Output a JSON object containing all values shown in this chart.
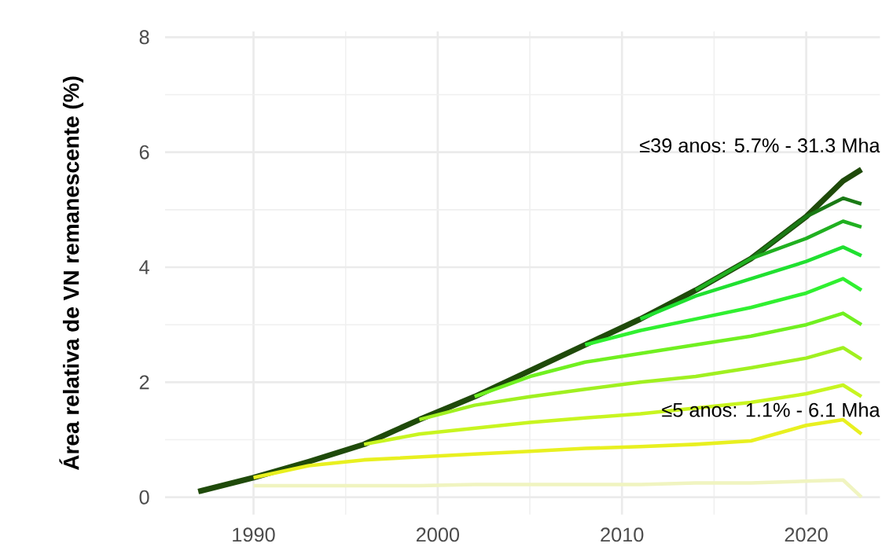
{
  "chart_data": {
    "type": "line",
    "ylabel": "Área relativa de VN remanescente (%)",
    "x": [
      1987,
      1990,
      1993,
      1996,
      1999,
      2002,
      2005,
      2008,
      2011,
      2014,
      2017,
      2020,
      2022,
      2023
    ],
    "xlim": [
      1985.2,
      2024
    ],
    "ylim": [
      -0.3,
      8.1
    ],
    "xticks": [
      1990,
      2000,
      2010,
      2020
    ],
    "yticks": [
      0,
      2,
      4,
      6,
      8
    ],
    "grid": true,
    "line_style": "solid",
    "series": [
      {
        "color": "#f0f4c0",
        "values": [
          null,
          0.2,
          0.2,
          0.2,
          0.2,
          0.22,
          0.22,
          0.22,
          0.22,
          0.25,
          0.25,
          0.28,
          0.3,
          0.0
        ]
      },
      {
        "color": "#e8f020",
        "values": [
          null,
          0.34,
          0.55,
          0.65,
          0.7,
          0.75,
          0.8,
          0.85,
          0.88,
          0.92,
          0.98,
          1.25,
          1.35,
          1.1
        ]
      },
      {
        "color": "#c8f520",
        "values": [
          null,
          null,
          null,
          0.92,
          1.1,
          1.2,
          1.3,
          1.38,
          1.45,
          1.55,
          1.65,
          1.8,
          1.95,
          1.75
        ]
      },
      {
        "color": "#a0f020",
        "values": [
          null,
          null,
          null,
          null,
          1.35,
          1.6,
          1.75,
          1.88,
          2.0,
          2.1,
          2.25,
          2.42,
          2.6,
          2.4
        ]
      },
      {
        "color": "#70f020",
        "values": [
          null,
          null,
          null,
          null,
          null,
          1.75,
          2.1,
          2.35,
          2.5,
          2.65,
          2.8,
          3.0,
          3.2,
          3.0
        ]
      },
      {
        "color": "#30f030",
        "values": [
          null,
          null,
          null,
          null,
          null,
          null,
          null,
          2.65,
          2.9,
          3.1,
          3.3,
          3.55,
          3.8,
          3.6
        ]
      },
      {
        "color": "#20e030",
        "values": [
          null,
          null,
          null,
          null,
          null,
          null,
          null,
          null,
          3.1,
          3.5,
          3.8,
          4.1,
          4.35,
          4.2
        ]
      },
      {
        "color": "#20b020",
        "values": [
          null,
          null,
          null,
          null,
          null,
          null,
          null,
          null,
          null,
          3.6,
          4.15,
          4.5,
          4.8,
          4.7
        ]
      },
      {
        "color": "#1a7a15",
        "values": [
          null,
          null,
          null,
          null,
          null,
          null,
          null,
          null,
          null,
          null,
          4.15,
          4.88,
          5.2,
          5.1
        ]
      },
      {
        "color": "#1f4a0a",
        "values": [
          0.1,
          0.34,
          0.62,
          0.92,
          1.35,
          1.75,
          2.2,
          2.65,
          3.1,
          3.6,
          4.15,
          4.88,
          5.5,
          5.7
        ]
      }
    ],
    "annotations": [
      {
        "text": "≤39 anos: 5.7% - 31.3 Mha",
        "x": 2023,
        "y": 5.7
      },
      {
        "text": "≤5 anos: 1.1% - 6.1 Mha",
        "x": 2023,
        "y": 1.1
      }
    ]
  }
}
